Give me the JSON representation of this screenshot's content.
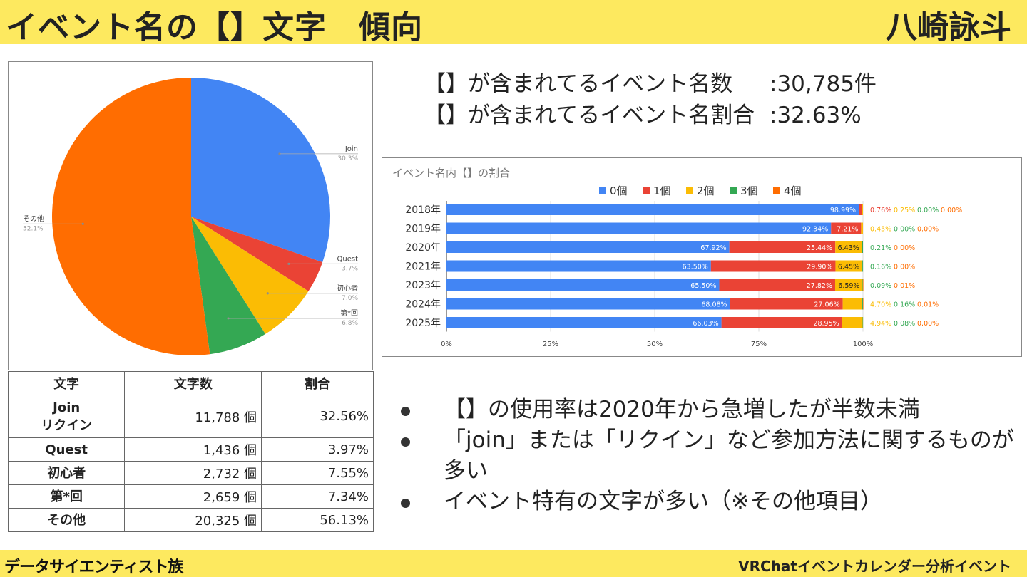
{
  "header": {
    "title": "イベント名の【】文字　傾向",
    "author": "八崎詠斗"
  },
  "footer": {
    "left": "データサイエンティスト族",
    "right": "VRChatイベントカレンダー分析イベント"
  },
  "summary": [
    {
      "label": "【】が含まれてるイベント名数",
      "value": ":30,785件"
    },
    {
      "label": "【】が含まれてるイベント名割合",
      "value": ":32.63%"
    }
  ],
  "table": {
    "headers": [
      "文字",
      "文字数",
      "割合"
    ],
    "rows": [
      {
        "name": "Join\nリクイン",
        "count": "11,788 個",
        "pct": "32.56%"
      },
      {
        "name": "Quest",
        "count": "1,436 個",
        "pct": "3.97%"
      },
      {
        "name": "初心者",
        "count": "2,732 個",
        "pct": "7.55%"
      },
      {
        "name": "第*回",
        "count": "2,659 個",
        "pct": "7.34%"
      },
      {
        "name": "その他",
        "count": "20,325 個",
        "pct": "56.13%"
      }
    ]
  },
  "bullets": [
    "【】の使用率は2020年から急増したが半数未満",
    "「join」または「リクイン」など参加方法に関するものが多い",
    "イベント特有の文字が多い（※その他項目）"
  ],
  "chart_data": [
    {
      "type": "pie",
      "title": "",
      "slices": [
        {
          "label": "Join",
          "value": 30.3,
          "pct_label": "30.3%",
          "color": "#4285f4"
        },
        {
          "label": "Quest",
          "value": 3.7,
          "pct_label": "3.7%",
          "color": "#ea4335"
        },
        {
          "label": "初心者",
          "value": 7.0,
          "pct_label": "7.0%",
          "color": "#fbbc04"
        },
        {
          "label": "第*回",
          "value": 6.8,
          "pct_label": "6.8%",
          "color": "#34a853"
        },
        {
          "label": "その他",
          "value": 52.1,
          "pct_label": "52.1%",
          "color": "#ff6d01"
        }
      ]
    },
    {
      "type": "bar",
      "stacked": true,
      "orientation": "horizontal",
      "title": "イベント名内【】の割合",
      "legend_position": "top",
      "categories": [
        "2018年",
        "2019年",
        "2020年",
        "2021年",
        "2023年",
        "2024年",
        "2025年"
      ],
      "series": [
        {
          "name": "0個",
          "color": "#4285f4",
          "values": [
            98.99,
            92.34,
            67.92,
            63.5,
            65.5,
            68.08,
            66.03
          ]
        },
        {
          "name": "1個",
          "color": "#ea4335",
          "values": [
            0.76,
            7.21,
            25.44,
            29.9,
            27.82,
            27.06,
            28.95
          ]
        },
        {
          "name": "2個",
          "color": "#fbbc04",
          "values": [
            0.25,
            0.45,
            6.43,
            6.45,
            6.59,
            4.7,
            4.94
          ]
        },
        {
          "name": "3個",
          "color": "#34a853",
          "values": [
            0.0,
            0.0,
            0.21,
            0.16,
            0.09,
            0.16,
            0.08
          ]
        },
        {
          "name": "4個",
          "color": "#ff6d01",
          "values": [
            0.0,
            0.0,
            0.0,
            0.0,
            0.01,
            0.01,
            0.0
          ]
        }
      ],
      "labels": [
        [
          "98.99%",
          "",
          "",
          "",
          ""
        ],
        [
          "92.34%",
          "7.21%",
          "",
          "",
          ""
        ],
        [
          "67.92%",
          "25.44%",
          "6.43%",
          "",
          ""
        ],
        [
          "63.50%",
          "29.90%",
          "6.45%",
          "",
          ""
        ],
        [
          "65.50%",
          "27.82%",
          "6.59%",
          "",
          ""
        ],
        [
          "68.08%",
          "27.06%",
          "",
          "",
          ""
        ],
        [
          "66.03%",
          "28.95%",
          "",
          "",
          ""
        ]
      ],
      "outside_labels": [
        [
          "",
          "0.76%",
          "0.25%",
          "0.00%",
          "0.00%"
        ],
        [
          "",
          "",
          "0.45%",
          "0.00%",
          "0.00%"
        ],
        [
          "",
          "",
          "",
          "0.21%",
          "0.00%"
        ],
        [
          "",
          "",
          "",
          "0.16%",
          "0.00%"
        ],
        [
          "",
          "",
          "",
          "0.09%",
          "0.01%"
        ],
        [
          "",
          "",
          "4.70%",
          "0.16%",
          "0.01%"
        ],
        [
          "",
          "",
          "4.94%",
          "0.08%",
          "0.00%"
        ]
      ],
      "xticks": [
        "0%",
        "25%",
        "50%",
        "75%",
        "100%"
      ],
      "xlim": [
        0,
        100
      ]
    }
  ]
}
